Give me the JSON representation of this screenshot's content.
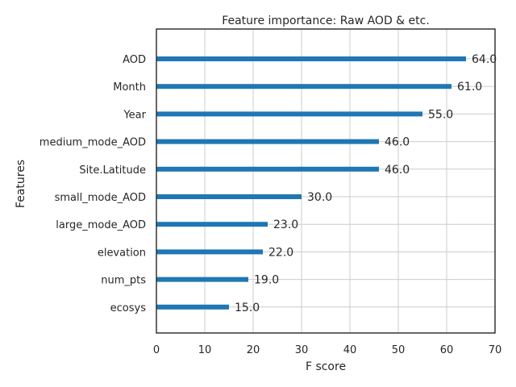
{
  "chart_data": {
    "type": "bar",
    "orientation": "horizontal",
    "title": "Feature importance: Raw AOD & etc.",
    "xlabel": "F score",
    "ylabel": "Features",
    "categories": [
      "AOD",
      "Month",
      "Year",
      "medium_mode_AOD",
      "Site.Latitude",
      "small_mode_AOD",
      "large_mode_AOD",
      "elevation",
      "num_pts",
      "ecosys"
    ],
    "values": [
      64.0,
      61.0,
      55.0,
      46.0,
      46.0,
      30.0,
      23.0,
      22.0,
      19.0,
      15.0
    ],
    "value_labels": [
      "64.0",
      "61.0",
      "55.0",
      "46.0",
      "46.0",
      "30.0",
      "23.0",
      "22.0",
      "19.0",
      "15.0"
    ],
    "xlim": [
      0,
      70
    ],
    "xticks": [
      0,
      10,
      20,
      30,
      40,
      50,
      60,
      70
    ],
    "grid": true,
    "bar_color": "#1f77b4",
    "grid_color": "#cccccc",
    "axis_color": "#262626"
  }
}
